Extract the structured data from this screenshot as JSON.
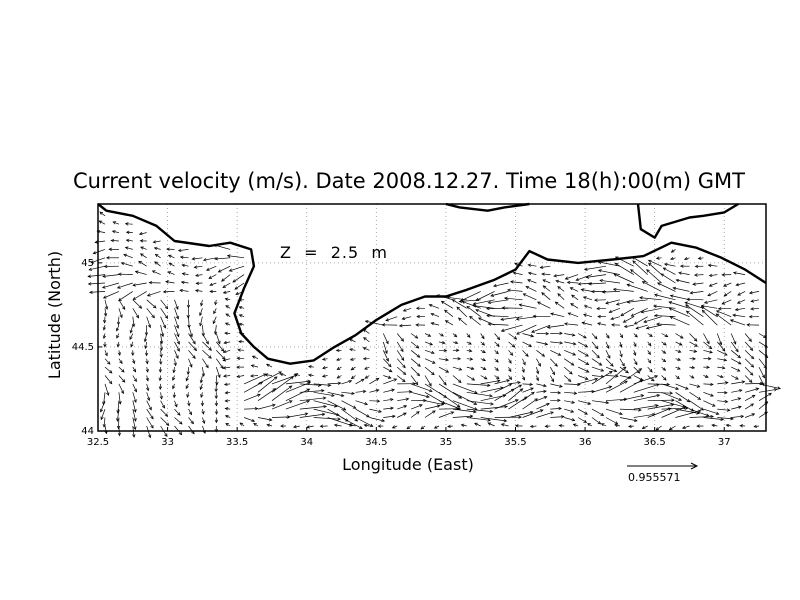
{
  "chart_data": {
    "type": "vector-field",
    "title": "Current velocity (m/s). Date 2008.12.27. Time 18(h):00(m) GMT",
    "annotation": "Z  =  2.5  m",
    "xlabel": "Longitude (East)",
    "ylabel": "Latitude (North)",
    "xlim": [
      32.5,
      37.3
    ],
    "ylim": [
      44.0,
      45.35
    ],
    "xticks": [
      "32.5",
      "33",
      "33.5",
      "34",
      "34.5",
      "35",
      "35.5",
      "36",
      "36.5",
      "37"
    ],
    "yticks": [
      "44",
      "44.5",
      "45"
    ],
    "grid": true,
    "reference_vector": {
      "value": "0.955571",
      "magnitude": 0.955571,
      "units": "m/s"
    },
    "coastline": [
      [
        32.5,
        45.35
      ],
      [
        32.56,
        45.31
      ],
      [
        32.75,
        45.28
      ],
      [
        32.92,
        45.22
      ],
      [
        33.05,
        45.13
      ],
      [
        33.3,
        45.1
      ],
      [
        33.45,
        45.12
      ],
      [
        33.6,
        45.08
      ],
      [
        33.62,
        44.98
      ],
      [
        33.55,
        44.85
      ],
      [
        33.48,
        44.7
      ],
      [
        33.53,
        44.58
      ],
      [
        33.62,
        44.5
      ],
      [
        33.72,
        44.43
      ],
      [
        33.88,
        44.4
      ],
      [
        34.05,
        44.42
      ],
      [
        34.2,
        44.5
      ],
      [
        34.35,
        44.57
      ],
      [
        34.5,
        44.66
      ],
      [
        34.68,
        44.75
      ],
      [
        34.85,
        44.8
      ],
      [
        35.0,
        44.8
      ],
      [
        35.15,
        44.84
      ],
      [
        35.35,
        44.9
      ],
      [
        35.5,
        44.96
      ],
      [
        35.6,
        45.07
      ],
      [
        35.73,
        45.02
      ],
      [
        35.95,
        45.0
      ],
      [
        36.2,
        45.02
      ],
      [
        36.42,
        45.04
      ],
      [
        36.62,
        45.12
      ],
      [
        36.8,
        45.09
      ],
      [
        36.98,
        45.03
      ],
      [
        37.15,
        44.96
      ],
      [
        37.3,
        44.88
      ]
    ],
    "sea_of_azov_coast": [
      [
        35.0,
        45.35
      ],
      [
        35.1,
        45.33
      ],
      [
        35.3,
        45.31
      ],
      [
        35.42,
        45.33
      ],
      [
        35.6,
        45.35
      ]
    ],
    "kerch_coast": [
      [
        36.38,
        45.35
      ],
      [
        36.4,
        45.2
      ],
      [
        36.5,
        45.15
      ],
      [
        36.55,
        45.22
      ],
      [
        36.75,
        45.27
      ],
      [
        36.85,
        45.28
      ],
      [
        37.0,
        45.3
      ],
      [
        37.1,
        45.35
      ]
    ],
    "vector_scale_note": "arrows scaled relative to reference vector",
    "velocity_field": {
      "lon_step": 0.1,
      "lat_step": 0.05,
      "pattern": [
        {
          "region": "western shelf west of Crimea",
          "lon": [
            32.5,
            33.6
          ],
          "lat": [
            44.8,
            45.35
          ],
          "u": -0.35,
          "v": 0.0
        },
        {
          "region": "west coast eddy",
          "lon": [
            32.5,
            33.4
          ],
          "lat": [
            44.0,
            44.8
          ],
          "u": 0.05,
          "v": -0.25
        },
        {
          "region": "rim current south of Crimea",
          "lon": [
            33.5,
            37.3
          ],
          "lat": [
            44.05,
            44.3
          ],
          "u": 0.55,
          "v": 0.02
        },
        {
          "region": "coastal counter flow",
          "lon": [
            34.3,
            37.3
          ],
          "lat": [
            44.6,
            45.0
          ],
          "u": -0.45,
          "v": 0.05
        },
        {
          "region": "central eddies",
          "lon": [
            34.5,
            37.3
          ],
          "lat": [
            44.3,
            44.6
          ],
          "u": 0.2,
          "v": -0.15
        }
      ]
    }
  }
}
